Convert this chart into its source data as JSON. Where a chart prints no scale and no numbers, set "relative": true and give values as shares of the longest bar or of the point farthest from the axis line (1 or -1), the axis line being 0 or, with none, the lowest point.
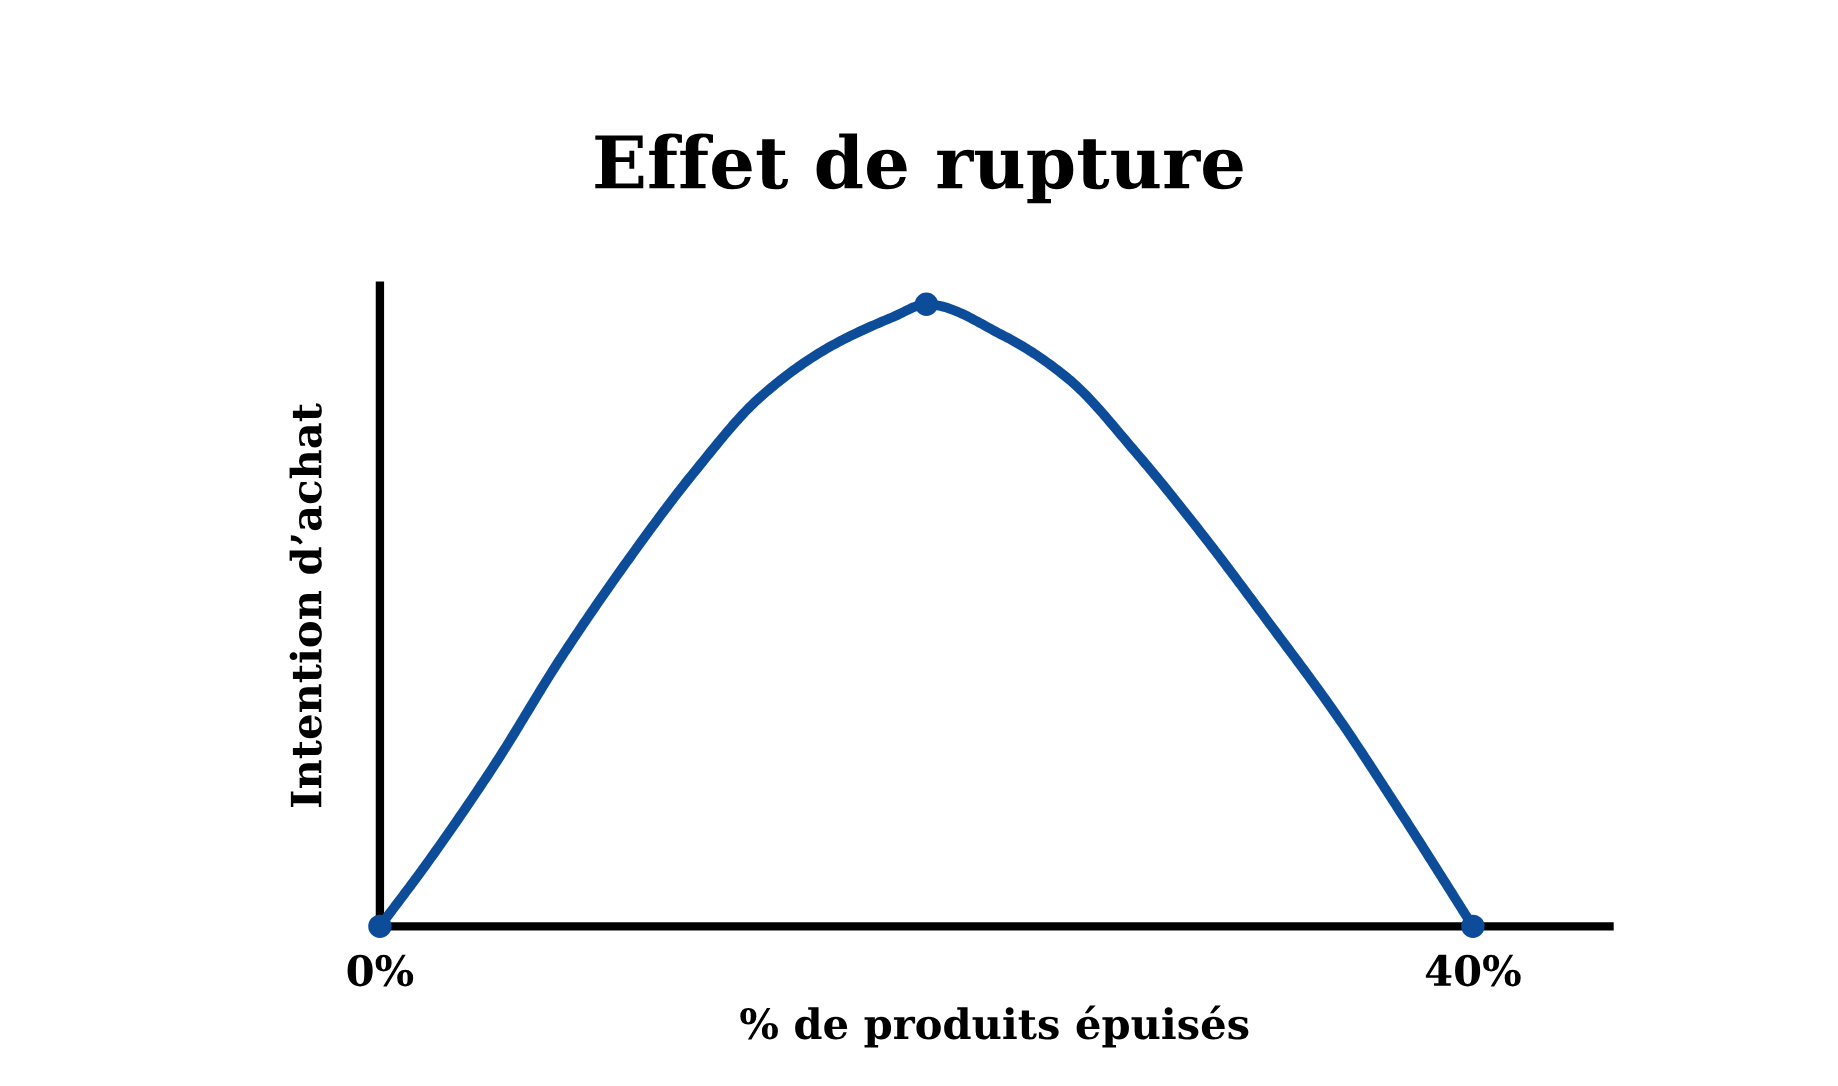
{
  "chart_data": {
    "type": "line",
    "title": "Effet de rupture",
    "xlabel": "% de produits épuisés",
    "ylabel": "Intention d’achat",
    "relative": true,
    "xlim": [
      0,
      45
    ],
    "xticks": [
      {
        "value": 0,
        "label": "0%"
      },
      {
        "value": 40,
        "label": "40%"
      }
    ],
    "grid": false,
    "series": [
      {
        "color": "#0d4c99",
        "marker": "none",
        "x": [
          0,
          1.7,
          4.2,
          6.6,
          9.1,
          11.5,
          13.9,
          16.4,
          18.8,
          20,
          22.8,
          25.2,
          27.7,
          30.1,
          32.5,
          35,
          37.4,
          40
        ],
        "values": [
          0,
          0.1,
          0.26,
          0.43,
          0.59,
          0.73,
          0.85,
          0.93,
          0.98,
          1,
          0.95,
          0.88,
          0.76,
          0.63,
          0.49,
          0.34,
          0.18,
          0
        ]
      },
      {
        "type": "scatter",
        "color": "#0d4c99",
        "marker": "circle",
        "x": [
          0,
          20,
          40
        ],
        "values": [
          0,
          1,
          0
        ]
      }
    ]
  }
}
